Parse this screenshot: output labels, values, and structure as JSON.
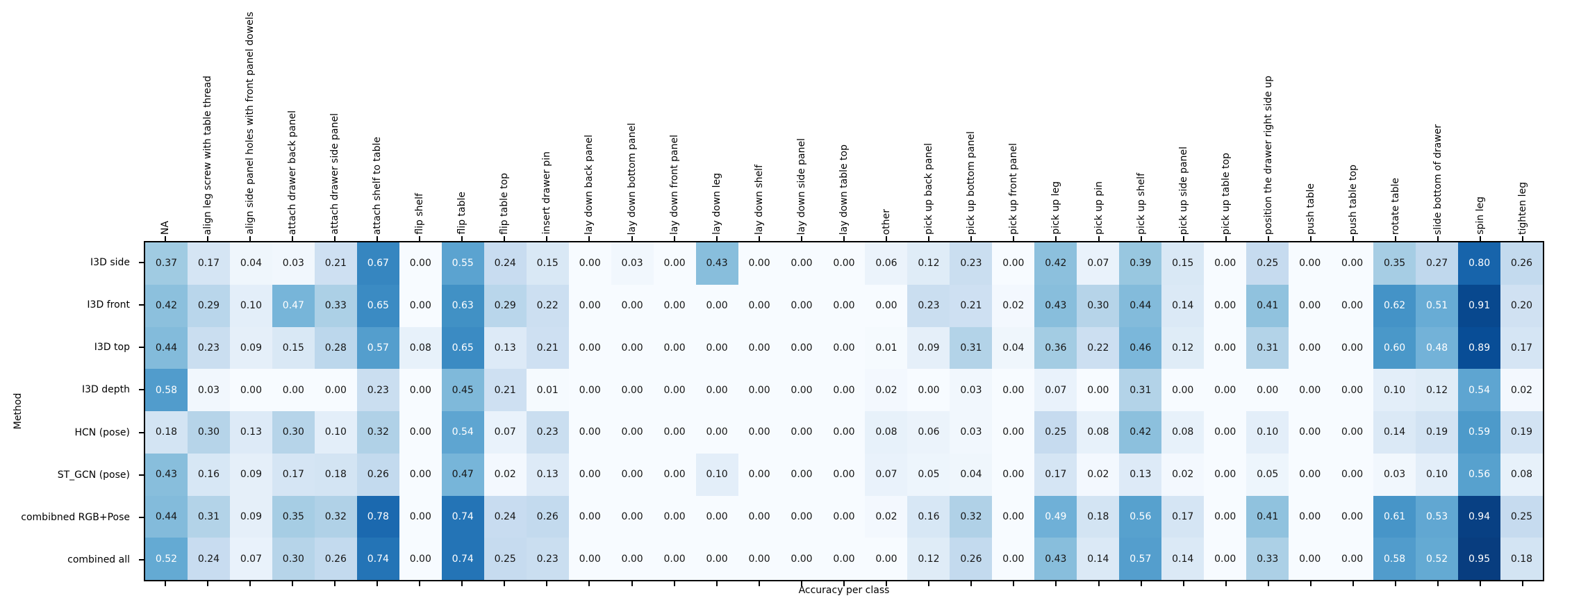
{
  "figure": {
    "background_color": "#ffffff",
    "spine_color": "#000000",
    "xlabel": "Accuracy per class",
    "ylabel": "Method"
  },
  "chart_data": {
    "type": "heatmap",
    "title": "",
    "xlabel": "Accuracy per class",
    "ylabel": "Method",
    "colormap": "Blues",
    "value_range": [
      0,
      1
    ],
    "annotation_format": "0.2f",
    "legend": "none",
    "grid": false,
    "columns": [
      "NA",
      "align leg screw with table thread",
      "align side panel holes with front panel dowels",
      "attach drawer back panel",
      "attach drawer side panel",
      "attach shelf to table",
      "flip shelf",
      "flip table",
      "flip table top",
      "insert drawer pin",
      "lay down back panel",
      "lay down bottom panel",
      "lay down front panel",
      "lay down leg",
      "lay down shelf",
      "lay down side panel",
      "lay down table top",
      "other",
      "pick up back panel",
      "pick up bottom panel",
      "pick up front panel",
      "pick up leg",
      "pick up pin",
      "pick up shelf",
      "pick up side panel",
      "pick up table top",
      "position the drawer right side up",
      "push table",
      "push table top",
      "rotate table",
      "slide bottom of drawer",
      "spin leg",
      "tighten leg"
    ],
    "rows": [
      "I3D side",
      "I3D front",
      "I3D top",
      "I3D depth",
      "HCN (pose)",
      "ST_GCN (pose)",
      "combibned RGB+Pose",
      "combined all"
    ],
    "values": [
      [
        0.37,
        0.17,
        0.04,
        0.03,
        0.21,
        0.67,
        0.0,
        0.55,
        0.24,
        0.15,
        0.0,
        0.03,
        0.0,
        0.43,
        0.0,
        0.0,
        0.0,
        0.06,
        0.12,
        0.23,
        0.0,
        0.42,
        0.07,
        0.39,
        0.15,
        0.0,
        0.25,
        0.0,
        0.0,
        0.35,
        0.27,
        0.8,
        0.26
      ],
      [
        0.42,
        0.29,
        0.1,
        0.47,
        0.33,
        0.65,
        0.0,
        0.63,
        0.29,
        0.22,
        0.0,
        0.0,
        0.0,
        0.0,
        0.0,
        0.0,
        0.0,
        0.0,
        0.23,
        0.21,
        0.02,
        0.43,
        0.3,
        0.44,
        0.14,
        0.0,
        0.41,
        0.0,
        0.0,
        0.62,
        0.51,
        0.91,
        0.2
      ],
      [
        0.44,
        0.23,
        0.09,
        0.15,
        0.28,
        0.57,
        0.08,
        0.65,
        0.13,
        0.21,
        0.0,
        0.0,
        0.0,
        0.0,
        0.0,
        0.0,
        0.0,
        0.01,
        0.09,
        0.31,
        0.04,
        0.36,
        0.22,
        0.46,
        0.12,
        0.0,
        0.31,
        0.0,
        0.0,
        0.6,
        0.48,
        0.89,
        0.17
      ],
      [
        0.58,
        0.03,
        0.0,
        0.0,
        0.0,
        0.23,
        0.0,
        0.45,
        0.21,
        0.01,
        0.0,
        0.0,
        0.0,
        0.0,
        0.0,
        0.0,
        0.0,
        0.02,
        0.0,
        0.03,
        0.0,
        0.07,
        0.0,
        0.31,
        0.0,
        0.0,
        0.0,
        0.0,
        0.0,
        0.1,
        0.12,
        0.54,
        0.02
      ],
      [
        0.18,
        0.3,
        0.13,
        0.3,
        0.1,
        0.32,
        0.0,
        0.54,
        0.07,
        0.23,
        0.0,
        0.0,
        0.0,
        0.0,
        0.0,
        0.0,
        0.0,
        0.08,
        0.06,
        0.03,
        0.0,
        0.25,
        0.08,
        0.42,
        0.08,
        0.0,
        0.1,
        0.0,
        0.0,
        0.14,
        0.19,
        0.59,
        0.19
      ],
      [
        0.43,
        0.16,
        0.09,
        0.17,
        0.18,
        0.26,
        0.0,
        0.47,
        0.02,
        0.13,
        0.0,
        0.0,
        0.0,
        0.1,
        0.0,
        0.0,
        0.0,
        0.07,
        0.05,
        0.04,
        0.0,
        0.17,
        0.02,
        0.13,
        0.02,
        0.0,
        0.05,
        0.0,
        0.0,
        0.03,
        0.1,
        0.56,
        0.08
      ],
      [
        0.44,
        0.31,
        0.09,
        0.35,
        0.32,
        0.78,
        0.0,
        0.74,
        0.24,
        0.26,
        0.0,
        0.0,
        0.0,
        0.0,
        0.0,
        0.0,
        0.0,
        0.02,
        0.16,
        0.32,
        0.0,
        0.49,
        0.18,
        0.56,
        0.17,
        0.0,
        0.41,
        0.0,
        0.0,
        0.61,
        0.53,
        0.94,
        0.25
      ],
      [
        0.52,
        0.24,
        0.07,
        0.3,
        0.26,
        0.74,
        0.0,
        0.74,
        0.25,
        0.23,
        0.0,
        0.0,
        0.0,
        0.0,
        0.0,
        0.0,
        0.0,
        0.0,
        0.12,
        0.26,
        0.0,
        0.43,
        0.14,
        0.57,
        0.14,
        0.0,
        0.33,
        0.0,
        0.0,
        0.58,
        0.52,
        0.95,
        0.18
      ]
    ],
    "force_white_cells": [
      [
        1,
        3
      ]
    ],
    "colormap_stops": [
      [
        0.0,
        "#f7fbff"
      ],
      [
        0.125,
        "#deebf7"
      ],
      [
        0.25,
        "#c6dbef"
      ],
      [
        0.375,
        "#9ecae1"
      ],
      [
        0.5,
        "#6baed6"
      ],
      [
        0.625,
        "#4292c6"
      ],
      [
        0.75,
        "#2171b5"
      ],
      [
        0.875,
        "#08519c"
      ],
      [
        1.0,
        "#08306b"
      ]
    ]
  }
}
